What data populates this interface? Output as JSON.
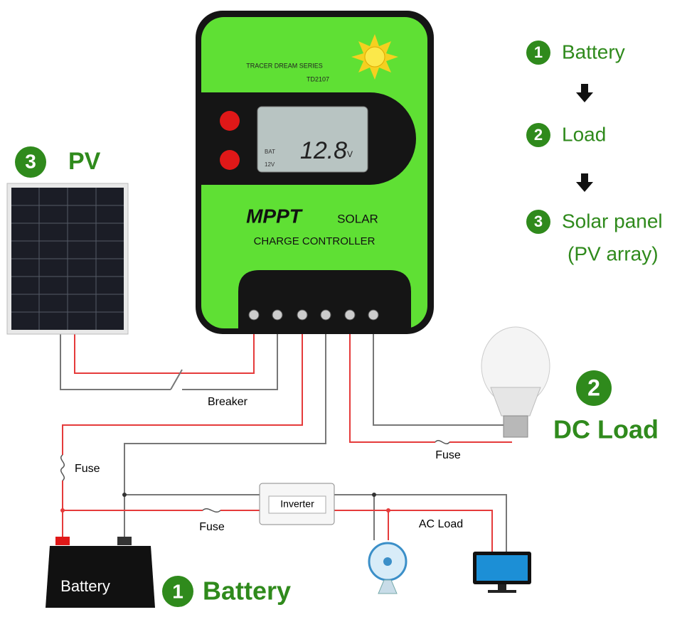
{
  "controller": {
    "series": "TRACER DREAM SERIES",
    "model": "TD2107",
    "display": {
      "value": "12.8",
      "unit": "V",
      "label_bat": "BAT",
      "label_voltage": "12V"
    },
    "brand": "MPPT",
    "product_line1": "SOLAR",
    "product_line2": "CHARGE CONTROLLER"
  },
  "connection_order": [
    {
      "number": "1",
      "label": "Battery"
    },
    {
      "number": "2",
      "label": "Load"
    },
    {
      "number": "3",
      "label": "Solar panel",
      "sub": "(PV array)"
    }
  ],
  "components": {
    "pv": {
      "number": "3",
      "label": "PV"
    },
    "dc_load": {
      "number": "2",
      "label": "DC Load"
    },
    "battery": {
      "number": "1",
      "label": "Battery",
      "case_label": "Battery"
    }
  },
  "wiring": {
    "breaker": "Breaker",
    "fuses": [
      "Fuse",
      "Fuse",
      "Fuse"
    ],
    "inverter": "Inverter",
    "ac_load": "AC Load"
  }
}
